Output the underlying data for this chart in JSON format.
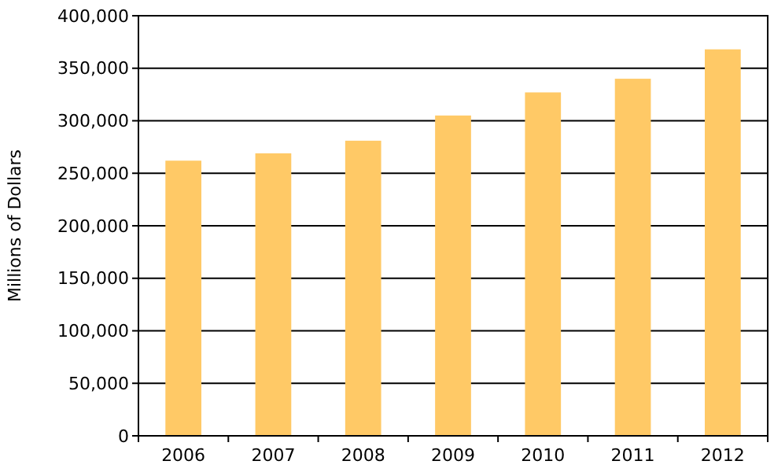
{
  "chart_data": {
    "type": "bar",
    "ylabel": "Millions of Dollars",
    "categories": [
      "2006",
      "2007",
      "2008",
      "2009",
      "2010",
      "2011",
      "2012"
    ],
    "values": [
      262000,
      269000,
      281000,
      305000,
      327000,
      340000,
      368000
    ],
    "color": "#ffc966",
    "ylim": [
      0,
      400000
    ],
    "yticks": [
      {
        "value": 0,
        "label": "0"
      },
      {
        "value": 50000,
        "label": "50,000"
      },
      {
        "value": 100000,
        "label": "100,000"
      },
      {
        "value": 150000,
        "label": "150,000"
      },
      {
        "value": 200000,
        "label": "200,000"
      },
      {
        "value": 250000,
        "label": "250,000"
      },
      {
        "value": 300000,
        "label": "300,000"
      },
      {
        "value": 350000,
        "label": "350,000"
      },
      {
        "value": 400000,
        "label": "400,000"
      }
    ],
    "grid": "y"
  }
}
